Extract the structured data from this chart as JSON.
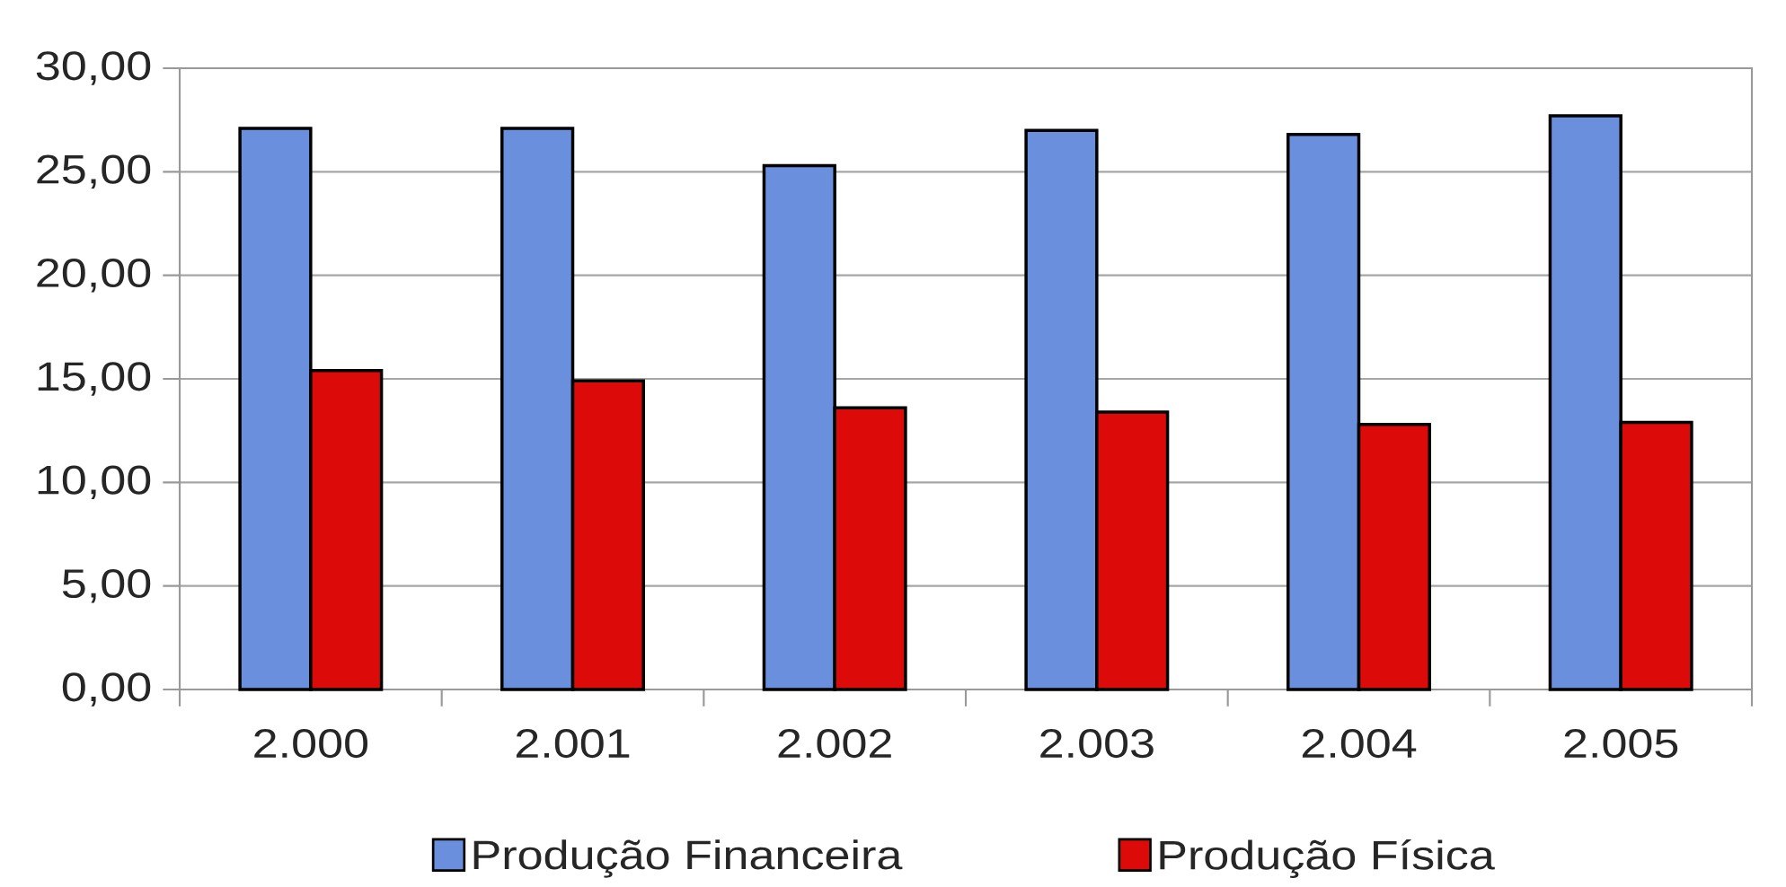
{
  "chart_data": {
    "type": "bar",
    "categories": [
      "2.000",
      "2.001",
      "2.002",
      "2.003",
      "2.004",
      "2.005"
    ],
    "series": [
      {
        "name": "Produção Financeira",
        "color": "#6a8fdc",
        "values": [
          27.1,
          27.1,
          25.3,
          27.0,
          26.8,
          27.7
        ]
      },
      {
        "name": "Produção Física",
        "color": "#dd0a0a",
        "values": [
          15.4,
          14.9,
          13.6,
          13.4,
          12.8,
          12.9
        ]
      }
    ],
    "ylim": [
      0,
      30
    ],
    "yticks": [
      {
        "value": 0,
        "label": "0,00"
      },
      {
        "value": 5,
        "label": "5,00"
      },
      {
        "value": 10,
        "label": "10,00"
      },
      {
        "value": 15,
        "label": "15,00"
      },
      {
        "value": 20,
        "label": "20,00"
      },
      {
        "value": 25,
        "label": "25,00"
      },
      {
        "value": 30,
        "label": "30,00"
      }
    ],
    "grid": "y",
    "legend": "bottom"
  }
}
